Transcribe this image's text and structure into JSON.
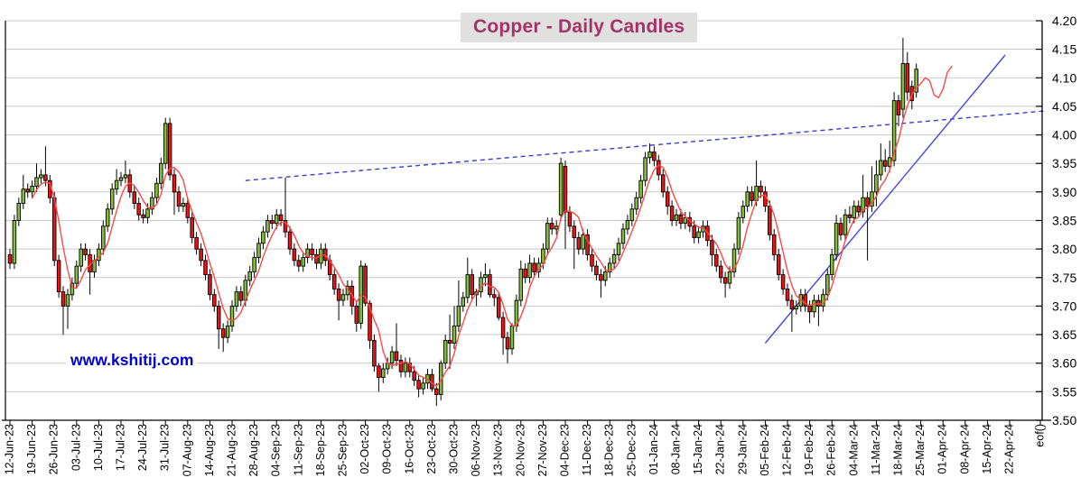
{
  "title": "Copper - Daily Candles",
  "watermark": "www.kshitij.com",
  "colors": {
    "title_text": "#a43366",
    "title_background": "#e0e0e0",
    "watermark_text": "#0000cc",
    "bull_candle": "#85bf33",
    "bear_candle": "#f01111",
    "candle_border": "#000000",
    "moving_average_line": "#ff4747",
    "trendline_dashed": "#3b3bd8",
    "trendline_solid": "#4646e2",
    "gridline": "#c9c9c9",
    "axis": "#000000",
    "background": "#ffffff"
  },
  "chart_data": {
    "type": "candlestick",
    "title": "Copper - Daily Candles",
    "ylabel": "",
    "xlabel": "",
    "y_axis_side": "right",
    "ylim": [
      3.5,
      4.2
    ],
    "grid": "horizontal",
    "y_ticks": [
      4.2,
      4.15,
      4.1,
      4.05,
      4.0,
      3.95,
      3.9,
      3.85,
      3.8,
      3.75,
      3.7,
      3.65,
      3.6,
      3.55,
      3.5
    ],
    "x_tick_labels": [
      "12-Jun-23",
      "19-Jun-23",
      "26-Jun-23",
      "03-Jul-23",
      "10-Jul-23",
      "17-Jul-23",
      "24-Jul-23",
      "31-Jul-23",
      "07-Aug-23",
      "14-Aug-23",
      "21-Aug-23",
      "28-Aug-23",
      "04-Sep-23",
      "11-Sep-23",
      "18-Sep-23",
      "25-Sep-23",
      "02-Oct-23",
      "09-Oct-23",
      "16-Oct-23",
      "23-Oct-23",
      "30-Oct-23",
      "06-Nov-23",
      "13-Nov-23",
      "20-Nov-23",
      "27-Nov-23",
      "04-Dec-23",
      "11-Dec-23",
      "18-Dec-23",
      "25-Dec-23",
      "01-Jan-24",
      "08-Jan-24",
      "15-Jan-24",
      "22-Jan-24",
      "29-Jan-24",
      "05-Feb-24",
      "12-Feb-24",
      "19-Feb-24",
      "26-Feb-24",
      "04-Mar-24",
      "11-Mar-24",
      "18-Mar-24",
      "25-Mar-24",
      "01-Apr-24",
      "08-Apr-24",
      "15-Apr-24",
      "22-Apr-24",
      "eof()"
    ],
    "first_candle_date": "12-Jun-23",
    "frequency": "daily (Mon-Fri), 5 candles per weekly tick",
    "candles_ohlc": [
      [
        3.79,
        3.8,
        3.765,
        3.775
      ],
      [
        3.775,
        3.86,
        3.765,
        3.85
      ],
      [
        3.85,
        3.89,
        3.84,
        3.88
      ],
      [
        3.88,
        3.93,
        3.87,
        3.905
      ],
      [
        3.905,
        3.915,
        3.89,
        3.9
      ],
      [
        3.9,
        3.92,
        3.89,
        3.91
      ],
      [
        3.91,
        3.95,
        3.9,
        3.925
      ],
      [
        3.925,
        3.94,
        3.915,
        3.93
      ],
      [
        3.93,
        3.98,
        3.91,
        3.92
      ],
      [
        3.92,
        3.93,
        3.88,
        3.89
      ],
      [
        3.89,
        3.9,
        3.77,
        3.78
      ],
      [
        3.78,
        3.79,
        3.715,
        3.725
      ],
      [
        3.725,
        3.735,
        3.65,
        3.7
      ],
      [
        3.7,
        3.73,
        3.66,
        3.72
      ],
      [
        3.72,
        3.75,
        3.71,
        3.74
      ],
      [
        3.74,
        3.78,
        3.73,
        3.77
      ],
      [
        3.77,
        3.81,
        3.76,
        3.8
      ],
      [
        3.8,
        3.81,
        3.78,
        3.79
      ],
      [
        3.79,
        3.8,
        3.72,
        3.76
      ],
      [
        3.76,
        3.79,
        3.75,
        3.78
      ],
      [
        3.78,
        3.81,
        3.77,
        3.8
      ],
      [
        3.8,
        3.85,
        3.79,
        3.84
      ],
      [
        3.84,
        3.88,
        3.83,
        3.87
      ],
      [
        3.87,
        3.915,
        3.86,
        3.905
      ],
      [
        3.905,
        3.94,
        3.895,
        3.92
      ],
      [
        3.92,
        3.935,
        3.91,
        3.925
      ],
      [
        3.925,
        3.955,
        3.915,
        3.93
      ],
      [
        3.93,
        3.94,
        3.89,
        3.9
      ],
      [
        3.9,
        3.91,
        3.87,
        3.88
      ],
      [
        3.88,
        3.89,
        3.85,
        3.86
      ],
      [
        3.86,
        3.87,
        3.845,
        3.855
      ],
      [
        3.855,
        3.88,
        3.845,
        3.87
      ],
      [
        3.87,
        3.9,
        3.86,
        3.89
      ],
      [
        3.89,
        3.925,
        3.88,
        3.915
      ],
      [
        3.915,
        3.96,
        3.905,
        3.95
      ],
      [
        3.95,
        4.03,
        3.94,
        4.02
      ],
      [
        4.02,
        4.03,
        3.92,
        3.93
      ],
      [
        3.93,
        3.94,
        3.86,
        3.9
      ],
      [
        3.9,
        3.91,
        3.865,
        3.875
      ],
      [
        3.875,
        3.89,
        3.865,
        3.88
      ],
      [
        3.88,
        3.89,
        3.845,
        3.855
      ],
      [
        3.855,
        3.865,
        3.81,
        3.82
      ],
      [
        3.82,
        3.83,
        3.79,
        3.8
      ],
      [
        3.8,
        3.81,
        3.77,
        3.78
      ],
      [
        3.78,
        3.79,
        3.745,
        3.755
      ],
      [
        3.755,
        3.765,
        3.71,
        3.72
      ],
      [
        3.72,
        3.73,
        3.69,
        3.7
      ],
      [
        3.7,
        3.71,
        3.625,
        3.66
      ],
      [
        3.66,
        3.67,
        3.62,
        3.645
      ],
      [
        3.645,
        3.675,
        3.635,
        3.665
      ],
      [
        3.665,
        3.71,
        3.655,
        3.7
      ],
      [
        3.7,
        3.735,
        3.69,
        3.725
      ],
      [
        3.725,
        3.735,
        3.7,
        3.71
      ],
      [
        3.71,
        3.755,
        3.7,
        3.745
      ],
      [
        3.745,
        3.77,
        3.735,
        3.76
      ],
      [
        3.76,
        3.795,
        3.75,
        3.785
      ],
      [
        3.785,
        3.82,
        3.775,
        3.81
      ],
      [
        3.81,
        3.84,
        3.8,
        3.83
      ],
      [
        3.83,
        3.86,
        3.82,
        3.85
      ],
      [
        3.85,
        3.86,
        3.835,
        3.845
      ],
      [
        3.845,
        3.87,
        3.835,
        3.86
      ],
      [
        3.86,
        3.87,
        3.84,
        3.85
      ],
      [
        3.85,
        3.925,
        3.82,
        3.83
      ],
      [
        3.83,
        3.84,
        3.79,
        3.8
      ],
      [
        3.8,
        3.81,
        3.77,
        3.78
      ],
      [
        3.78,
        3.79,
        3.76,
        3.77
      ],
      [
        3.77,
        3.795,
        3.76,
        3.785
      ],
      [
        3.785,
        3.81,
        3.775,
        3.8
      ],
      [
        3.8,
        3.81,
        3.78,
        3.79
      ],
      [
        3.79,
        3.8,
        3.765,
        3.775
      ],
      [
        3.775,
        3.81,
        3.765,
        3.8
      ],
      [
        3.8,
        3.81,
        3.77,
        3.78
      ],
      [
        3.78,
        3.79,
        3.745,
        3.755
      ],
      [
        3.755,
        3.765,
        3.72,
        3.73
      ],
      [
        3.73,
        3.74,
        3.675,
        3.71
      ],
      [
        3.71,
        3.73,
        3.7,
        3.72
      ],
      [
        3.72,
        3.745,
        3.71,
        3.735
      ],
      [
        3.735,
        3.745,
        3.685,
        3.7
      ],
      [
        3.7,
        3.71,
        3.655,
        3.67
      ],
      [
        3.67,
        3.78,
        3.66,
        3.77
      ],
      [
        3.77,
        3.775,
        3.7,
        3.705
      ],
      [
        3.705,
        3.71,
        3.625,
        3.64
      ],
      [
        3.64,
        3.65,
        3.585,
        3.595
      ],
      [
        3.595,
        3.6,
        3.55,
        3.575
      ],
      [
        3.575,
        3.6,
        3.565,
        3.59
      ],
      [
        3.59,
        3.61,
        3.58,
        3.6
      ],
      [
        3.6,
        3.63,
        3.59,
        3.62
      ],
      [
        3.62,
        3.67,
        3.595,
        3.605
      ],
      [
        3.605,
        3.615,
        3.575,
        3.585
      ],
      [
        3.585,
        3.61,
        3.575,
        3.6
      ],
      [
        3.6,
        3.61,
        3.575,
        3.585
      ],
      [
        3.585,
        3.595,
        3.56,
        3.57
      ],
      [
        3.57,
        3.58,
        3.54,
        3.555
      ],
      [
        3.555,
        3.575,
        3.545,
        3.565
      ],
      [
        3.565,
        3.59,
        3.555,
        3.58
      ],
      [
        3.58,
        3.59,
        3.55,
        3.555
      ],
      [
        3.555,
        3.565,
        3.525,
        3.545
      ],
      [
        3.545,
        3.605,
        3.535,
        3.6
      ],
      [
        3.6,
        3.65,
        3.59,
        3.64
      ],
      [
        3.64,
        3.685,
        3.59,
        3.635
      ],
      [
        3.635,
        3.7,
        3.625,
        3.665
      ],
      [
        3.665,
        3.745,
        3.655,
        3.7
      ],
      [
        3.7,
        3.725,
        3.69,
        3.715
      ],
      [
        3.715,
        3.785,
        3.705,
        3.755
      ],
      [
        3.755,
        3.765,
        3.71,
        3.72
      ],
      [
        3.72,
        3.73,
        3.7,
        3.725
      ],
      [
        3.725,
        3.76,
        3.715,
        3.75
      ],
      [
        3.75,
        3.775,
        3.735,
        3.755
      ],
      [
        3.755,
        3.765,
        3.715,
        3.72
      ],
      [
        3.72,
        3.73,
        3.7,
        3.715
      ],
      [
        3.715,
        3.725,
        3.675,
        3.68
      ],
      [
        3.68,
        3.69,
        3.615,
        3.645
      ],
      [
        3.645,
        3.655,
        3.6,
        3.625
      ],
      [
        3.625,
        3.67,
        3.615,
        3.665
      ],
      [
        3.665,
        3.72,
        3.655,
        3.71
      ],
      [
        3.71,
        3.78,
        3.7,
        3.765
      ],
      [
        3.765,
        3.775,
        3.74,
        3.75
      ],
      [
        3.75,
        3.79,
        3.74,
        3.775
      ],
      [
        3.775,
        3.785,
        3.75,
        3.76
      ],
      [
        3.76,
        3.785,
        3.75,
        3.775
      ],
      [
        3.775,
        3.81,
        3.765,
        3.8
      ],
      [
        3.8,
        3.855,
        3.79,
        3.845
      ],
      [
        3.845,
        3.855,
        3.825,
        3.835
      ],
      [
        3.835,
        3.85,
        3.825,
        3.84
      ],
      [
        3.86,
        3.96,
        3.85,
        3.95
      ],
      [
        3.945,
        3.955,
        3.8,
        3.865
      ],
      [
        3.865,
        3.875,
        3.83,
        3.84
      ],
      [
        3.84,
        3.85,
        3.765,
        3.82
      ],
      [
        3.82,
        3.83,
        3.79,
        3.8
      ],
      [
        3.8,
        3.835,
        3.79,
        3.825
      ],
      [
        3.825,
        3.835,
        3.78,
        3.79
      ],
      [
        3.79,
        3.8,
        3.76,
        3.77
      ],
      [
        3.77,
        3.78,
        3.745,
        3.755
      ],
      [
        3.755,
        3.765,
        3.715,
        3.745
      ],
      [
        3.745,
        3.77,
        3.735,
        3.76
      ],
      [
        3.76,
        3.785,
        3.75,
        3.775
      ],
      [
        3.775,
        3.8,
        3.765,
        3.79
      ],
      [
        3.79,
        3.82,
        3.78,
        3.81
      ],
      [
        3.81,
        3.845,
        3.8,
        3.835
      ],
      [
        3.835,
        3.86,
        3.825,
        3.85
      ],
      [
        3.85,
        3.88,
        3.84,
        3.87
      ],
      [
        3.87,
        3.9,
        3.86,
        3.89
      ],
      [
        3.89,
        3.93,
        3.88,
        3.92
      ],
      [
        3.92,
        3.97,
        3.91,
        3.96
      ],
      [
        3.96,
        3.985,
        3.95,
        3.97
      ],
      [
        3.97,
        3.98,
        3.945,
        3.955
      ],
      [
        3.955,
        3.965,
        3.92,
        3.93
      ],
      [
        3.93,
        3.94,
        3.89,
        3.9
      ],
      [
        3.9,
        3.91,
        3.86,
        3.875
      ],
      [
        3.875,
        3.885,
        3.84,
        3.85
      ],
      [
        3.85,
        3.87,
        3.84,
        3.86
      ],
      [
        3.86,
        3.87,
        3.835,
        3.845
      ],
      [
        3.845,
        3.865,
        3.835,
        3.855
      ],
      [
        3.855,
        3.865,
        3.83,
        3.84
      ],
      [
        3.84,
        3.85,
        3.81,
        3.82
      ],
      [
        3.82,
        3.84,
        3.81,
        3.83
      ],
      [
        3.83,
        3.85,
        3.82,
        3.84
      ],
      [
        3.84,
        3.85,
        3.805,
        3.815
      ],
      [
        3.815,
        3.825,
        3.77,
        3.79
      ],
      [
        3.79,
        3.8,
        3.76,
        3.77
      ],
      [
        3.77,
        3.78,
        3.74,
        3.75
      ],
      [
        3.75,
        3.76,
        3.715,
        3.74
      ],
      [
        3.74,
        3.77,
        3.73,
        3.76
      ],
      [
        3.76,
        3.81,
        3.75,
        3.8
      ],
      [
        3.8,
        3.865,
        3.79,
        3.855
      ],
      [
        3.855,
        3.885,
        3.845,
        3.875
      ],
      [
        3.875,
        3.91,
        3.865,
        3.9
      ],
      [
        3.9,
        3.91,
        3.875,
        3.885
      ],
      [
        3.885,
        3.955,
        3.875,
        3.91
      ],
      [
        3.91,
        3.92,
        3.89,
        3.9
      ],
      [
        3.9,
        3.91,
        3.865,
        3.875
      ],
      [
        3.875,
        3.885,
        3.815,
        3.825
      ],
      [
        3.825,
        3.835,
        3.78,
        3.79
      ],
      [
        3.79,
        3.8,
        3.745,
        3.755
      ],
      [
        3.755,
        3.765,
        3.72,
        3.73
      ],
      [
        3.73,
        3.74,
        3.7,
        3.71
      ],
      [
        3.71,
        3.72,
        3.655,
        3.695
      ],
      [
        3.695,
        3.71,
        3.685,
        3.7
      ],
      [
        3.7,
        3.73,
        3.69,
        3.72
      ],
      [
        3.72,
        3.73,
        3.69,
        3.7
      ],
      [
        3.7,
        3.71,
        3.67,
        3.69
      ],
      [
        3.69,
        3.72,
        3.68,
        3.71
      ],
      [
        3.71,
        3.72,
        3.665,
        3.7
      ],
      [
        3.7,
        3.73,
        3.69,
        3.72
      ],
      [
        3.72,
        3.765,
        3.71,
        3.755
      ],
      [
        3.755,
        3.8,
        3.745,
        3.79
      ],
      [
        3.79,
        3.86,
        3.78,
        3.845
      ],
      [
        3.845,
        3.855,
        3.815,
        3.825
      ],
      [
        3.825,
        3.87,
        3.815,
        3.86
      ],
      [
        3.86,
        3.875,
        3.845,
        3.855
      ],
      [
        3.855,
        3.885,
        3.845,
        3.875
      ],
      [
        3.875,
        3.885,
        3.855,
        3.865
      ],
      [
        3.865,
        3.93,
        3.855,
        3.89
      ],
      [
        3.89,
        3.9,
        3.78,
        3.875
      ],
      [
        3.875,
        3.945,
        3.865,
        3.9
      ],
      [
        3.9,
        3.955,
        3.875,
        3.93
      ],
      [
        3.93,
        3.985,
        3.92,
        3.955
      ],
      [
        3.955,
        3.975,
        3.935,
        3.945
      ],
      [
        3.945,
        3.99,
        3.935,
        3.96
      ],
      [
        3.955,
        4.075,
        3.945,
        4.06
      ],
      [
        4.06,
        4.07,
        4.015,
        4.035
      ],
      [
        4.045,
        4.17,
        4.03,
        4.125
      ],
      [
        4.125,
        4.145,
        4.06,
        4.075
      ],
      [
        4.085,
        4.095,
        4.045,
        4.06
      ],
      [
        4.075,
        4.125,
        4.065,
        4.115
      ]
    ],
    "moving_average": {
      "type": "simple",
      "period": 5,
      "projection_day_value": [
        [
          205,
          4.09
        ],
        [
          206,
          4.1
        ],
        [
          207,
          4.095
        ],
        [
          208,
          4.07
        ],
        [
          209,
          4.065
        ],
        [
          210,
          4.08
        ],
        [
          211,
          4.11
        ],
        [
          212,
          4.12
        ]
      ]
    },
    "trendlines": [
      {
        "name": "dashed-resistance",
        "style": "dashed",
        "from_day": 53,
        "from_value": 3.92,
        "to_day": 233,
        "to_value": 4.042
      },
      {
        "name": "solid-support",
        "style": "solid",
        "from_day": 170,
        "from_value": 3.635,
        "to_day": 224,
        "to_value": 4.14
      }
    ],
    "legend": "none"
  }
}
